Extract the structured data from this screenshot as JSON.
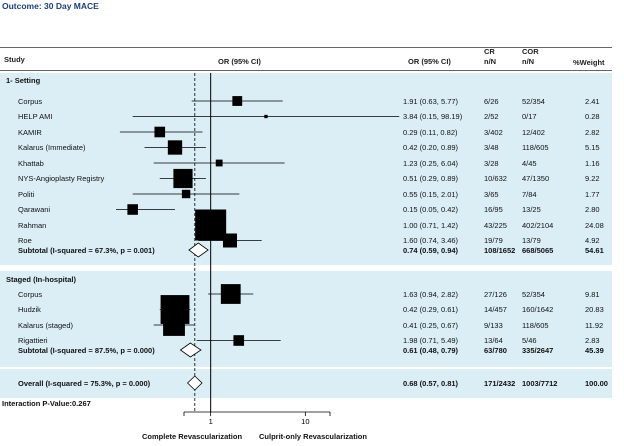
{
  "header": {
    "title": "Outcome: 30 Day MACE",
    "col_study": "Study",
    "col_or_graph": "OR (95% CI)",
    "col_or_text": "OR (95% CI)",
    "col_cr": "CR",
    "col_cr_sub": "n/N",
    "col_cor": "COR",
    "col_cor_sub": "n/N",
    "col_weight": "%Weight"
  },
  "footer": {
    "interaction": "Interaction P-Value:0.267",
    "xlabel_left": "Complete Revascularization",
    "xlabel_right": "Culprit-only Revascularization"
  },
  "chart_data": {
    "type": "forest",
    "x_scale": "log",
    "xlim": [
      0.1,
      100
    ],
    "ticks": [
      {
        "value": 1,
        "label": "1"
      },
      {
        "value": 10,
        "label": "10"
      }
    ],
    "null_line": 1,
    "overall_line": 0.68,
    "groups": [
      {
        "label": "1- Setting",
        "studies": [
          {
            "name": "Corpus",
            "or": 1.91,
            "lo": 0.63,
            "hi": 5.77,
            "ci": "1.91 (0.63, 5.77)",
            "cr": "6/26",
            "cor": "52/354",
            "weight": "2.41"
          },
          {
            "name": "HELP AMI",
            "or": 3.84,
            "lo": 0.15,
            "hi": 98.19,
            "ci": "3.84 (0.15, 98.19)",
            "cr": "2/52",
            "cor": "0/17",
            "weight": "0.28"
          },
          {
            "name": "KAMIR",
            "or": 0.29,
            "lo": 0.11,
            "hi": 0.82,
            "ci": "0.29 (0.11, 0.82)",
            "cr": "3/402",
            "cor": "12/402",
            "weight": "2.82"
          },
          {
            "name": "Kalarus (Immediate)",
            "or": 0.42,
            "lo": 0.2,
            "hi": 0.89,
            "ci": "0.42 (0.20, 0.89)",
            "cr": "3/48",
            "cor": "118/605",
            "weight": "5.15"
          },
          {
            "name": "Khattab",
            "or": 1.23,
            "lo": 0.25,
            "hi": 6.04,
            "ci": "1.23 (0.25, 6.04)",
            "cr": "3/28",
            "cor": "4/45",
            "weight": "1.16"
          },
          {
            "name": "NYS-Angioplasty Registry",
            "or": 0.51,
            "lo": 0.29,
            "hi": 0.89,
            "ci": "0.51 (0.29, 0.89)",
            "cr": "10/632",
            "cor": "47/1350",
            "weight": "9.22"
          },
          {
            "name": "Politi",
            "or": 0.55,
            "lo": 0.15,
            "hi": 2.01,
            "ci": "0.55 (0.15, 2.01)",
            "cr": "3/65",
            "cor": "7/84",
            "weight": "1.77"
          },
          {
            "name": "Qarawani",
            "or": 0.15,
            "lo": 0.05,
            "hi": 0.42,
            "ci": "0.15 (0.05, 0.42)",
            "cr": "16/95",
            "cor": "13/25",
            "weight": "2.80"
          },
          {
            "name": "Rahman",
            "or": 1.0,
            "lo": 0.71,
            "hi": 1.42,
            "ci": "1.00 (0.71, 1.42)",
            "cr": "43/225",
            "cor": "402/2104",
            "weight": "24.08"
          },
          {
            "name": "Roe",
            "or": 1.6,
            "lo": 0.74,
            "hi": 3.46,
            "ci": "1.60 (0.74, 3.46)",
            "cr": "19/79",
            "cor": "13/79",
            "weight": "4.92"
          }
        ],
        "subtotal": {
          "label": "Subtotal  (I-squared = 67.3%, p = 0.001)",
          "or": 0.74,
          "lo": 0.59,
          "hi": 0.94,
          "ci": "0.74 (0.59, 0.94)",
          "cr": "108/1652",
          "cor": "668/5065",
          "weight": "54.61"
        }
      },
      {
        "label": "Staged (In-hospital)",
        "studies": [
          {
            "name": "Corpus",
            "or": 1.63,
            "lo": 0.94,
            "hi": 2.82,
            "ci": "1.63 (0.94, 2.82)",
            "cr": "27/126",
            "cor": "52/354",
            "weight": "9.81"
          },
          {
            "name": "Hudzik",
            "or": 0.42,
            "lo": 0.29,
            "hi": 0.61,
            "ci": "0.42 (0.29, 0.61)",
            "cr": "14/457",
            "cor": "160/1642",
            "weight": "20.83"
          },
          {
            "name": "Kalarus (staged)",
            "or": 0.41,
            "lo": 0.25,
            "hi": 0.67,
            "ci": "0.41 (0.25, 0.67)",
            "cr": "9/133",
            "cor": "118/605",
            "weight": "11.92"
          },
          {
            "name": "Rigattieri",
            "or": 1.98,
            "lo": 0.71,
            "hi": 5.49,
            "ci": "1.98 (0.71, 5.49)",
            "cr": "13/64",
            "cor": "5/46",
            "weight": "2.83"
          }
        ],
        "subtotal": {
          "label": "Subtotal  (I-squared = 87.5%, p = 0.000)",
          "or": 0.61,
          "lo": 0.48,
          "hi": 0.79,
          "ci": "0.61 (0.48, 0.79)",
          "cr": "63/780",
          "cor": "335/2647",
          "weight": "45.39"
        }
      }
    ],
    "overall": {
      "label": "Overall  (I-squared = 75.3%, p = 0.000)",
      "or": 0.68,
      "lo": 0.57,
      "hi": 0.81,
      "ci": "0.68 (0.57, 0.81)",
      "cr": "171/2432",
      "cor": "1003/7712",
      "weight": "100.00"
    }
  }
}
